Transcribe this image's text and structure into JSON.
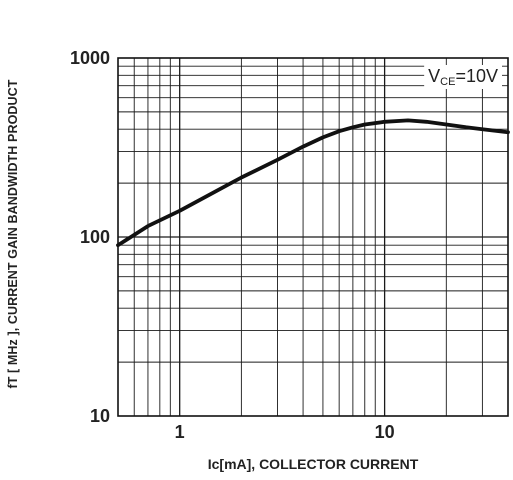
{
  "chart_data": {
    "type": "line",
    "title": "",
    "xlabel": "Ic[mA], COLLECTOR CURRENT",
    "ylabel": "fT [ MHz ], CURRENT GAIN BANDWIDTH PRODUCT",
    "x_scale": "log",
    "y_scale": "log",
    "xlim": [
      0.5,
      40
    ],
    "ylim": [
      10,
      1000
    ],
    "x_ticks": [
      1,
      10
    ],
    "x_tick_labels": [
      "1",
      "10"
    ],
    "y_ticks": [
      10,
      100,
      1000
    ],
    "y_tick_labels": [
      "10",
      "100",
      "1000"
    ],
    "grid": true,
    "annotation": {
      "main": "V",
      "sub": "CE",
      "rest": "=10V"
    },
    "series": [
      {
        "x": [
          0.5,
          0.7,
          1,
          1.5,
          2,
          3,
          4,
          5,
          6,
          7,
          8,
          10,
          13,
          16,
          20,
          25,
          30,
          40
        ],
        "y": [
          90,
          115,
          140,
          180,
          215,
          270,
          320,
          360,
          390,
          410,
          425,
          440,
          448,
          440,
          425,
          410,
          400,
          385
        ]
      }
    ]
  }
}
